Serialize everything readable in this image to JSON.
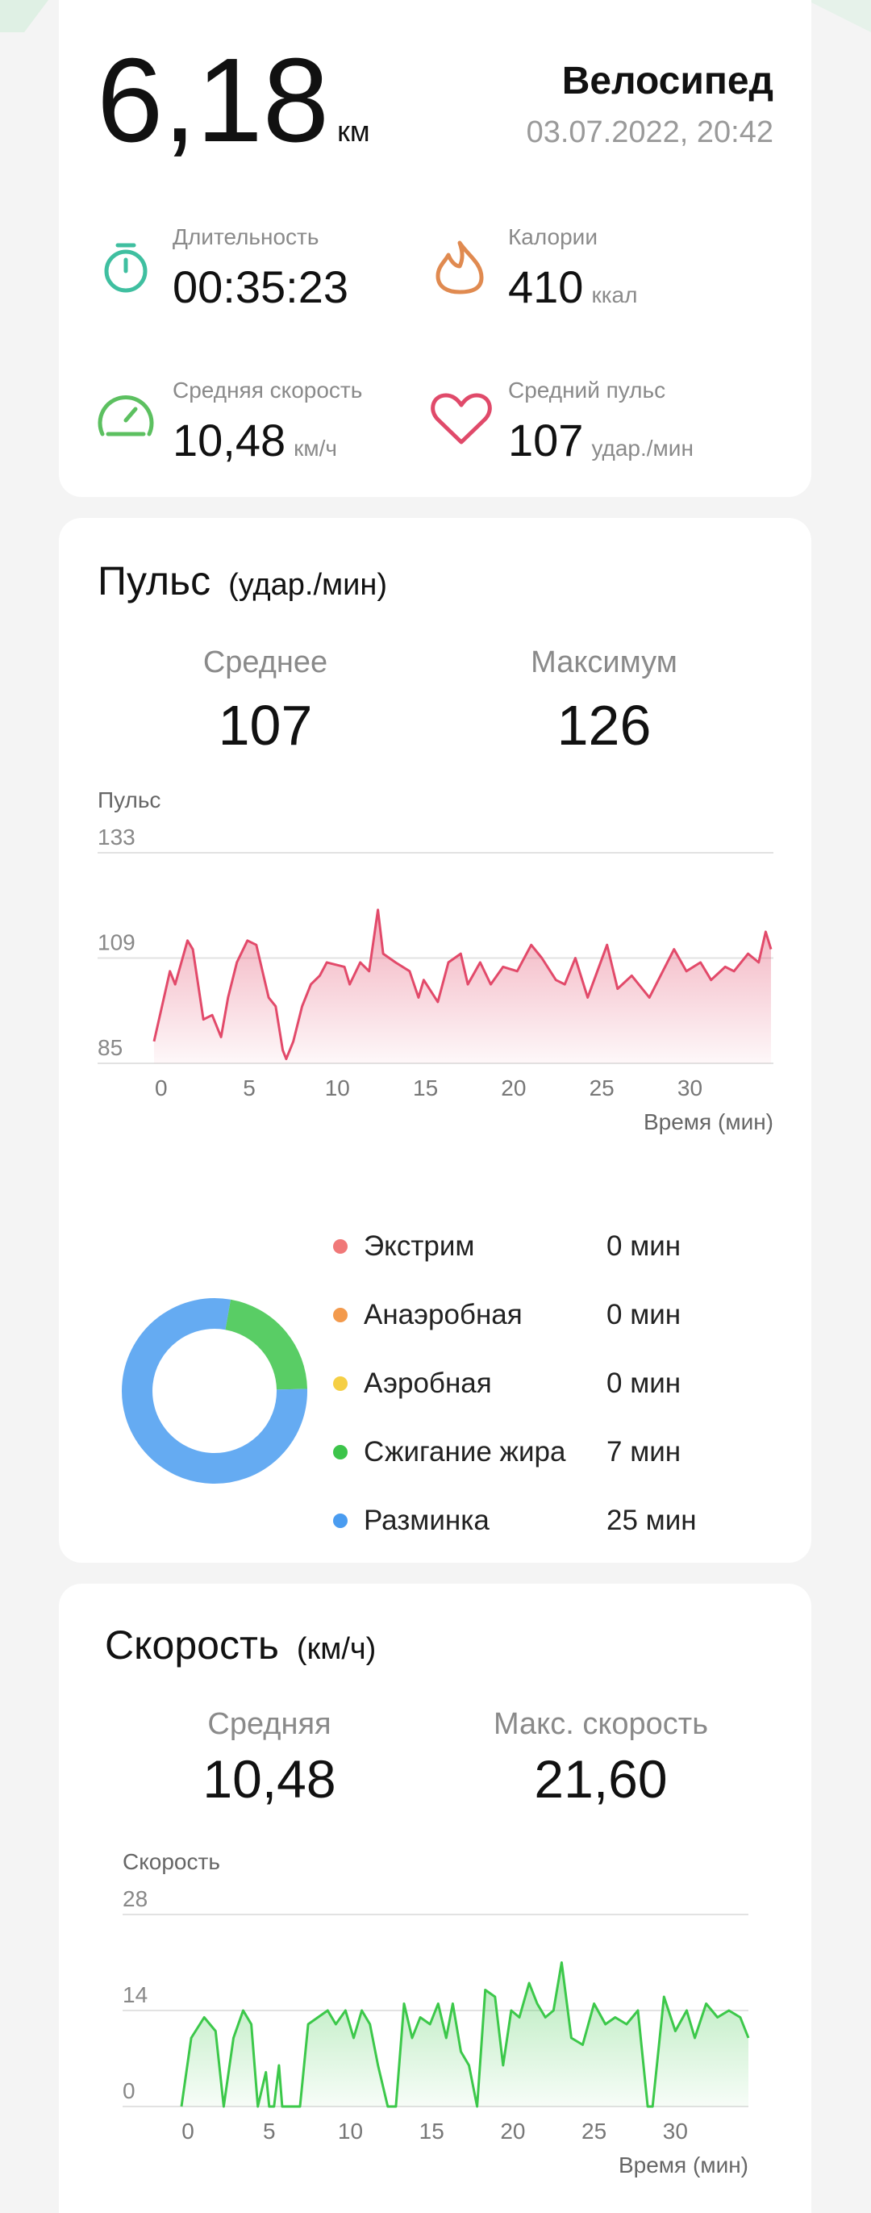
{
  "summary": {
    "distance": "6,18",
    "distance_unit": "км",
    "activity": "Велосипед",
    "date": "03.07.2022, 20:42",
    "stats": [
      {
        "label": "Длительность",
        "value": "00:35:23"
      },
      {
        "label": "Калории",
        "value": "410",
        "unit": "ккал"
      },
      {
        "label": "Средняя скорость",
        "value": "10,48",
        "unit": "км/ч"
      },
      {
        "label": "Средний пульс",
        "value": "107",
        "unit": "удар./мин"
      }
    ]
  },
  "heart_rate": {
    "title": "Пульс",
    "unit": "(удар./мин)",
    "avg_label": "Среднее",
    "avg": "107",
    "max_label": "Максимум",
    "max": "126",
    "chart": {
      "type": "line",
      "y_label": "Пульс",
      "x_label": "Время (мин)",
      "color": "#e24a6a",
      "x": [
        -0.4,
        0.5,
        0.8,
        1.5,
        1.8,
        2.4,
        2.9,
        3.4,
        3.8,
        4.3,
        4.9,
        5.4,
        6.1,
        6.5,
        6.9,
        7.1,
        7.5,
        8.0,
        8.5,
        9.0,
        9.4,
        10.4,
        10.7,
        11.3,
        11.8,
        12.3,
        12.6,
        13.3,
        14.1,
        14.6,
        14.9,
        15.7,
        16.3,
        17.0,
        17.4,
        18.1,
        18.7,
        19.4,
        20.2,
        21.0,
        21.6,
        22.4,
        22.9,
        23.5,
        24.2,
        25.3,
        25.9,
        26.7,
        27.7,
        29.1,
        29.8,
        30.6,
        31.2,
        32.0,
        32.5,
        33.3,
        33.9,
        34.3,
        34.6
      ],
      "values": [
        90,
        106,
        103,
        113,
        111,
        95,
        96,
        91,
        100,
        108,
        113,
        112,
        100,
        98,
        88,
        86,
        90,
        98,
        103,
        105,
        108,
        107,
        103,
        108,
        106,
        120,
        110,
        108,
        106,
        100,
        104,
        99,
        108,
        110,
        103,
        108,
        103,
        107,
        106,
        112,
        109,
        104,
        103,
        109,
        100,
        112,
        102,
        105,
        100,
        111,
        106,
        108,
        104,
        107,
        106,
        110,
        108,
        115,
        111
      ],
      "xlim": [
        -0.4,
        34.6
      ],
      "ylim": [
        85,
        133
      ],
      "xticks": [
        0,
        5,
        10,
        15,
        20,
        25,
        30
      ],
      "yticks": [
        85,
        109,
        133
      ]
    },
    "zones": {
      "type": "donut",
      "items": [
        {
          "name": "Экстрим",
          "color": "#f07878",
          "value": 0,
          "value_label": "0 мин"
        },
        {
          "name": "Анаэробная",
          "color": "#f39a4c",
          "value": 0,
          "value_label": "0 мин"
        },
        {
          "name": "Аэробная",
          "color": "#f5cf45",
          "value": 0,
          "value_label": "0 мин"
        },
        {
          "name": "Сжигание жира",
          "color": "#3cc44a",
          "value": 7,
          "value_label": "7 мин"
        },
        {
          "name": "Разминка",
          "color": "#4a9cf0",
          "value": 25,
          "value_label": "25 мин"
        }
      ]
    }
  },
  "speed": {
    "title": "Скорость",
    "unit": "(км/ч)",
    "avg_label": "Средняя",
    "avg": "10,48",
    "max_label": "Макс. скорость",
    "max": "21,60",
    "chart": {
      "type": "line",
      "y_label": "Скорость",
      "x_label": "Время (мин)",
      "color": "#3cc84a",
      "x": [
        -0.4,
        0.2,
        1.0,
        1.7,
        2.2,
        2.8,
        3.4,
        3.9,
        4.3,
        4.8,
        5.0,
        5.3,
        5.6,
        5.8,
        6.9,
        7.4,
        8.0,
        8.6,
        9.1,
        9.7,
        10.2,
        10.7,
        11.2,
        11.7,
        12.3,
        12.8,
        13.3,
        13.8,
        14.3,
        14.9,
        15.4,
        15.9,
        16.3,
        16.8,
        17.3,
        17.8,
        18.3,
        18.9,
        19.4,
        19.9,
        20.4,
        21.0,
        21.5,
        22.0,
        22.5,
        23.0,
        23.6,
        24.3,
        25.0,
        25.7,
        26.3,
        27.0,
        27.7,
        28.3,
        28.6,
        29.3,
        30.0,
        30.7,
        31.2,
        31.9,
        32.6,
        33.3,
        34.0,
        34.5
      ],
      "values": [
        0,
        10,
        13,
        11,
        0,
        10,
        14,
        12,
        0,
        5,
        0,
        0,
        6,
        0,
        0,
        12,
        13,
        14,
        12,
        14,
        10,
        14,
        12,
        6,
        0,
        0,
        15,
        10,
        13,
        12,
        15,
        10,
        15,
        8,
        6,
        0,
        17,
        16,
        6,
        14,
        13,
        18,
        15,
        13,
        14,
        21,
        10,
        9,
        15,
        12,
        13,
        12,
        14,
        0,
        0,
        16,
        11,
        14,
        10,
        15,
        13,
        14,
        13,
        10
      ],
      "xlim": [
        -0.4,
        34.5
      ],
      "ylim": [
        0,
        28
      ],
      "xticks": [
        0,
        5,
        10,
        15,
        20,
        25,
        30
      ],
      "yticks": [
        0,
        14,
        28
      ]
    }
  }
}
